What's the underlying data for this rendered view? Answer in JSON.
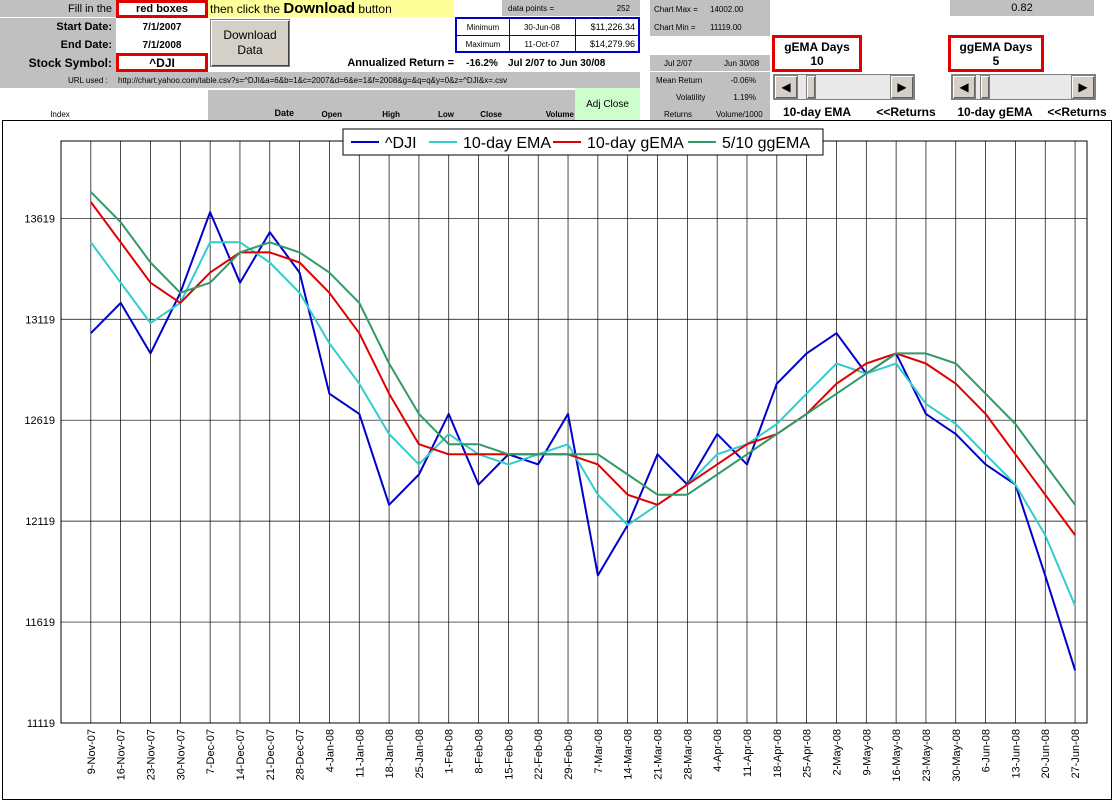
{
  "header": {
    "fill_in": "Fill in the",
    "red_boxes": "red boxes",
    "then_click": "then click the",
    "download_word": "Download",
    "button_word": "button"
  },
  "form": {
    "start_label": "Start Date:",
    "start_value": "7/1/2007",
    "end_label": "End Date:",
    "end_value": "7/1/2008",
    "symbol_label": "Stock Symbol:",
    "symbol_value": "^DJI",
    "download_label": "Download Data",
    "url_label": "URL used :",
    "url_value": "http://chart.yahoo.com/table.csv?s=^DJI&a=6&b=1&c=2007&d=6&e=1&f=2008&g=&q=q&y=0&z=^DJI&x=.csv"
  },
  "minmax": {
    "min_label": "Minimum",
    "min_date": "30-Jun-08",
    "min_value": "$11,226.34",
    "max_label": "Maximum",
    "max_date": "11-Oct-07",
    "max_value": "$14,279.96"
  },
  "stats": {
    "data_points_label": "data points =",
    "data_points_value": "252",
    "chart_max_label": "Chart Max =",
    "chart_max_value": "14002.00",
    "chart_min_label": "Chart Min =",
    "chart_min_value": "11119.00",
    "corr_value": "0.82",
    "annualized_label": "Annualized Return =",
    "annualized_value": "-16.2%",
    "annualized_period": "Jul 2/07 to Jun 30/08",
    "period_start": "Jul 2/07",
    "period_end": "Jun 30/08",
    "mean_label": "Mean Return",
    "mean_value": "-0.06%",
    "vol_label": "Volatility",
    "vol_value": "1.19%",
    "returns_label": "Returns",
    "volume_label": "Volume/1000"
  },
  "gema": {
    "label": "gEMA Days",
    "value": "10",
    "slider_level": 0.1,
    "tab_label": "10-day EMA",
    "returns_label": "<<Returns"
  },
  "ggema": {
    "label": "ggEMA Days",
    "value": "5",
    "slider_level": 0.05,
    "tab_label": "10-day gEMA",
    "returns_label": "<<Returns"
  },
  "table_headers": {
    "index": "Index",
    "date": "Date",
    "open": "Open",
    "high": "High",
    "low": "Low",
    "close": "Close",
    "volume": "Volume",
    "adj_close": "Adj Close"
  },
  "colors": {
    "dji": "#0000cc",
    "ema": "#33cccc",
    "gema": "#e00000",
    "ggema": "#339966",
    "redbox": "#e00000"
  },
  "chart_data": {
    "type": "line",
    "title": "",
    "xlabel": "",
    "ylabel": "",
    "ylim": [
      11119,
      14002
    ],
    "yticks": [
      11119,
      11619,
      12119,
      12619,
      13119,
      13619
    ],
    "grid": true,
    "legend": "top-center",
    "categories": [
      "9-Nov-07",
      "16-Nov-07",
      "23-Nov-07",
      "30-Nov-07",
      "7-Dec-07",
      "14-Dec-07",
      "21-Dec-07",
      "28-Dec-07",
      "4-Jan-08",
      "11-Jan-08",
      "18-Jan-08",
      "25-Jan-08",
      "1-Feb-08",
      "8-Feb-08",
      "15-Feb-08",
      "22-Feb-08",
      "29-Feb-08",
      "7-Mar-08",
      "14-Mar-08",
      "21-Mar-08",
      "28-Mar-08",
      "4-Apr-08",
      "11-Apr-08",
      "18-Apr-08",
      "25-Apr-08",
      "2-May-08",
      "9-May-08",
      "16-May-08",
      "23-May-08",
      "30-May-08",
      "6-Jun-08",
      "13-Jun-08",
      "20-Jun-08",
      "27-Jun-08"
    ],
    "series": [
      {
        "name": "^DJI",
        "values": [
          13050,
          13200,
          12950,
          13250,
          13650,
          13300,
          13550,
          13350,
          12750,
          12650,
          12200,
          12350,
          12650,
          12300,
          12450,
          12400,
          12650,
          11850,
          12100,
          12450,
          12300,
          12550,
          12400,
          12800,
          12950,
          13050,
          12850,
          12950,
          12650,
          12550,
          12400,
          12300,
          11850,
          11380
        ]
      },
      {
        "name": "10-day EMA",
        "values": [
          13500,
          13300,
          13100,
          13200,
          13500,
          13500,
          13400,
          13250,
          13000,
          12800,
          12550,
          12400,
          12550,
          12450,
          12400,
          12450,
          12500,
          12250,
          12100,
          12200,
          12300,
          12450,
          12500,
          12600,
          12750,
          12900,
          12850,
          12900,
          12700,
          12600,
          12450,
          12300,
          12050,
          11700
        ]
      },
      {
        "name": "10-day gEMA",
        "values": [
          13700,
          13500,
          13300,
          13200,
          13350,
          13450,
          13450,
          13400,
          13250,
          13050,
          12750,
          12500,
          12450,
          12450,
          12450,
          12450,
          12450,
          12400,
          12250,
          12200,
          12300,
          12400,
          12500,
          12550,
          12650,
          12800,
          12900,
          12950,
          12900,
          12800,
          12650,
          12450,
          12250,
          12050
        ]
      },
      {
        "name": "5/10 ggEMA",
        "values": [
          13750,
          13600,
          13400,
          13250,
          13300,
          13450,
          13500,
          13450,
          13350,
          13200,
          12900,
          12650,
          12500,
          12500,
          12450,
          12450,
          12450,
          12450,
          12350,
          12250,
          12250,
          12350,
          12450,
          12550,
          12650,
          12750,
          12850,
          12950,
          12950,
          12900,
          12750,
          12600,
          12400,
          12200
        ]
      }
    ]
  }
}
